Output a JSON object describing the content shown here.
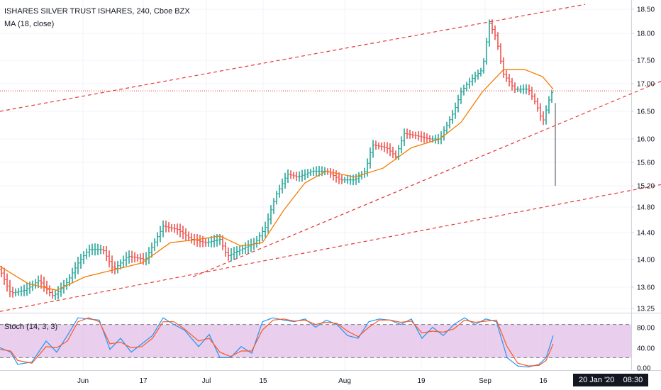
{
  "header": {
    "title": "ISHARES SILVER TRUST ISHARES, 240, Cboe BZX",
    "ma_label": "MA (18, close)",
    "stoch_label": "Stoch (14, 3, 3)"
  },
  "time_axis": {
    "labels": [
      "Jun",
      "17",
      "Jul",
      "15",
      "Aug",
      "19",
      "Sep",
      "16"
    ],
    "crosshair_date": "20 Jan '20",
    "crosshair_time": "08:30"
  },
  "chart_data": [
    {
      "type": "candlestick",
      "title": "ISHARES SILVER TRUST ISHARES, 240, Cboe BZX",
      "yticks": [
        "13.25",
        "13.60",
        "14.00",
        "14.40",
        "14.80",
        "15.20",
        "15.60",
        "16.00",
        "16.50",
        "17.00",
        "17.50",
        "18.00",
        "18.50"
      ],
      "ylim": [
        13.15,
        18.6
      ],
      "xlabels": [
        "Jun",
        "17",
        "Jul",
        "15",
        "Aug",
        "19",
        "Sep",
        "16"
      ],
      "grid": true,
      "current_price_line": 16.87,
      "close_points": [
        {
          "x": 0,
          "y": 13.85
        },
        {
          "x": 15,
          "y": 13.5
        },
        {
          "x": 35,
          "y": 13.55
        },
        {
          "x": 55,
          "y": 13.7
        },
        {
          "x": 75,
          "y": 13.45
        },
        {
          "x": 95,
          "y": 13.68
        },
        {
          "x": 110,
          "y": 13.95
        },
        {
          "x": 125,
          "y": 14.15
        },
        {
          "x": 145,
          "y": 14.15
        },
        {
          "x": 160,
          "y": 13.85
        },
        {
          "x": 180,
          "y": 14.05
        },
        {
          "x": 205,
          "y": 14.0
        },
        {
          "x": 215,
          "y": 14.2
        },
        {
          "x": 230,
          "y": 14.5
        },
        {
          "x": 250,
          "y": 14.45
        },
        {
          "x": 270,
          "y": 14.3
        },
        {
          "x": 290,
          "y": 14.25
        },
        {
          "x": 310,
          "y": 14.3
        },
        {
          "x": 320,
          "y": 14.05
        },
        {
          "x": 340,
          "y": 14.15
        },
        {
          "x": 360,
          "y": 14.25
        },
        {
          "x": 375,
          "y": 14.5
        },
        {
          "x": 390,
          "y": 15.05
        },
        {
          "x": 405,
          "y": 15.4
        },
        {
          "x": 420,
          "y": 15.35
        },
        {
          "x": 440,
          "y": 15.45
        },
        {
          "x": 460,
          "y": 15.45
        },
        {
          "x": 480,
          "y": 15.3
        },
        {
          "x": 500,
          "y": 15.3
        },
        {
          "x": 515,
          "y": 15.45
        },
        {
          "x": 525,
          "y": 15.9
        },
        {
          "x": 545,
          "y": 15.85
        },
        {
          "x": 558,
          "y": 15.7
        },
        {
          "x": 570,
          "y": 16.1
        },
        {
          "x": 590,
          "y": 16.05
        },
        {
          "x": 605,
          "y": 16.0
        },
        {
          "x": 620,
          "y": 16.0
        },
        {
          "x": 640,
          "y": 16.5
        },
        {
          "x": 650,
          "y": 16.85
        },
        {
          "x": 665,
          "y": 17.1
        },
        {
          "x": 680,
          "y": 17.3
        },
        {
          "x": 690,
          "y": 18.2
        },
        {
          "x": 700,
          "y": 17.9
        },
        {
          "x": 710,
          "y": 17.2
        },
        {
          "x": 725,
          "y": 16.9
        },
        {
          "x": 745,
          "y": 16.9
        },
        {
          "x": 757,
          "y": 16.6
        },
        {
          "x": 765,
          "y": 16.3
        },
        {
          "x": 775,
          "y": 16.75
        },
        {
          "x": 780,
          "y": 16.9
        }
      ],
      "ma_points": [
        {
          "x": 0,
          "y": 13.9
        },
        {
          "x": 40,
          "y": 13.65
        },
        {
          "x": 80,
          "y": 13.55
        },
        {
          "x": 120,
          "y": 13.75
        },
        {
          "x": 160,
          "y": 13.85
        },
        {
          "x": 200,
          "y": 13.95
        },
        {
          "x": 240,
          "y": 14.25
        },
        {
          "x": 280,
          "y": 14.3
        },
        {
          "x": 310,
          "y": 14.35
        },
        {
          "x": 340,
          "y": 14.2
        },
        {
          "x": 370,
          "y": 14.25
        },
        {
          "x": 400,
          "y": 14.75
        },
        {
          "x": 430,
          "y": 15.25
        },
        {
          "x": 460,
          "y": 15.45
        },
        {
          "x": 500,
          "y": 15.35
        },
        {
          "x": 540,
          "y": 15.5
        },
        {
          "x": 580,
          "y": 15.85
        },
        {
          "x": 620,
          "y": 16.0
        },
        {
          "x": 650,
          "y": 16.3
        },
        {
          "x": 680,
          "y": 16.85
        },
        {
          "x": 710,
          "y": 17.3
        },
        {
          "x": 740,
          "y": 17.3
        },
        {
          "x": 765,
          "y": 17.15
        },
        {
          "x": 780,
          "y": 16.9
        }
      ],
      "last_bar": {
        "x": 783,
        "high": 16.65,
        "low": 15.2
      },
      "trendlines": [
        {
          "x1": 0,
          "y1": 16.5,
          "x2": 825,
          "y2": 18.6
        },
        {
          "x1": 272,
          "y1": 13.75,
          "x2": 932,
          "y2": 17.05
        },
        {
          "x1": 0,
          "y1": 13.2,
          "x2": 932,
          "y2": 15.22
        }
      ]
    },
    {
      "type": "line",
      "title": "Stoch (14, 3, 3)",
      "yticks": [
        "0.00",
        "40.00",
        "80.00"
      ],
      "ylim": [
        0,
        100
      ],
      "bands": [
        20,
        80
      ],
      "series": [
        {
          "color": "#2196f3",
          "points": [
            {
              "x": 0,
              "y": 38
            },
            {
              "x": 15,
              "y": 30
            },
            {
              "x": 25,
              "y": 8
            },
            {
              "x": 45,
              "y": 12
            },
            {
              "x": 65,
              "y": 50
            },
            {
              "x": 80,
              "y": 30
            },
            {
              "x": 95,
              "y": 60
            },
            {
              "x": 110,
              "y": 92
            },
            {
              "x": 125,
              "y": 90
            },
            {
              "x": 140,
              "y": 88
            },
            {
              "x": 155,
              "y": 35
            },
            {
              "x": 170,
              "y": 55
            },
            {
              "x": 185,
              "y": 30
            },
            {
              "x": 200,
              "y": 45
            },
            {
              "x": 215,
              "y": 60
            },
            {
              "x": 230,
              "y": 92
            },
            {
              "x": 245,
              "y": 80
            },
            {
              "x": 260,
              "y": 70
            },
            {
              "x": 280,
              "y": 40
            },
            {
              "x": 295,
              "y": 62
            },
            {
              "x": 310,
              "y": 20
            },
            {
              "x": 325,
              "y": 20
            },
            {
              "x": 340,
              "y": 40
            },
            {
              "x": 355,
              "y": 28
            },
            {
              "x": 370,
              "y": 85
            },
            {
              "x": 385,
              "y": 92
            },
            {
              "x": 400,
              "y": 88
            },
            {
              "x": 415,
              "y": 85
            },
            {
              "x": 430,
              "y": 90
            },
            {
              "x": 445,
              "y": 75
            },
            {
              "x": 460,
              "y": 88
            },
            {
              "x": 475,
              "y": 80
            },
            {
              "x": 490,
              "y": 60
            },
            {
              "x": 505,
              "y": 55
            },
            {
              "x": 520,
              "y": 85
            },
            {
              "x": 535,
              "y": 90
            },
            {
              "x": 550,
              "y": 88
            },
            {
              "x": 565,
              "y": 80
            },
            {
              "x": 580,
              "y": 90
            },
            {
              "x": 595,
              "y": 55
            },
            {
              "x": 610,
              "y": 75
            },
            {
              "x": 625,
              "y": 60
            },
            {
              "x": 640,
              "y": 80
            },
            {
              "x": 655,
              "y": 92
            },
            {
              "x": 670,
              "y": 80
            },
            {
              "x": 685,
              "y": 90
            },
            {
              "x": 700,
              "y": 85
            },
            {
              "x": 715,
              "y": 20
            },
            {
              "x": 730,
              "y": 5
            },
            {
              "x": 745,
              "y": 3
            },
            {
              "x": 760,
              "y": 8
            },
            {
              "x": 770,
              "y": 20
            },
            {
              "x": 780,
              "y": 60
            }
          ]
        },
        {
          "color": "#ff5722",
          "points": [
            {
              "x": 0,
              "y": 35
            },
            {
              "x": 15,
              "y": 32
            },
            {
              "x": 25,
              "y": 15
            },
            {
              "x": 45,
              "y": 10
            },
            {
              "x": 65,
              "y": 40
            },
            {
              "x": 80,
              "y": 38
            },
            {
              "x": 95,
              "y": 50
            },
            {
              "x": 110,
              "y": 85
            },
            {
              "x": 125,
              "y": 92
            },
            {
              "x": 140,
              "y": 85
            },
            {
              "x": 155,
              "y": 45
            },
            {
              "x": 170,
              "y": 48
            },
            {
              "x": 185,
              "y": 38
            },
            {
              "x": 200,
              "y": 40
            },
            {
              "x": 215,
              "y": 55
            },
            {
              "x": 230,
              "y": 85
            },
            {
              "x": 245,
              "y": 85
            },
            {
              "x": 260,
              "y": 72
            },
            {
              "x": 280,
              "y": 50
            },
            {
              "x": 295,
              "y": 55
            },
            {
              "x": 310,
              "y": 30
            },
            {
              "x": 325,
              "y": 22
            },
            {
              "x": 340,
              "y": 32
            },
            {
              "x": 355,
              "y": 32
            },
            {
              "x": 370,
              "y": 70
            },
            {
              "x": 385,
              "y": 88
            },
            {
              "x": 400,
              "y": 90
            },
            {
              "x": 415,
              "y": 86
            },
            {
              "x": 430,
              "y": 88
            },
            {
              "x": 445,
              "y": 80
            },
            {
              "x": 460,
              "y": 84
            },
            {
              "x": 475,
              "y": 82
            },
            {
              "x": 490,
              "y": 68
            },
            {
              "x": 505,
              "y": 58
            },
            {
              "x": 520,
              "y": 75
            },
            {
              "x": 535,
              "y": 88
            },
            {
              "x": 550,
              "y": 88
            },
            {
              "x": 565,
              "y": 84
            },
            {
              "x": 580,
              "y": 86
            },
            {
              "x": 595,
              "y": 65
            },
            {
              "x": 610,
              "y": 68
            },
            {
              "x": 625,
              "y": 66
            },
            {
              "x": 640,
              "y": 72
            },
            {
              "x": 655,
              "y": 88
            },
            {
              "x": 670,
              "y": 84
            },
            {
              "x": 685,
              "y": 86
            },
            {
              "x": 700,
              "y": 88
            },
            {
              "x": 715,
              "y": 40
            },
            {
              "x": 730,
              "y": 10
            },
            {
              "x": 745,
              "y": 5
            },
            {
              "x": 760,
              "y": 6
            },
            {
              "x": 770,
              "y": 15
            },
            {
              "x": 780,
              "y": 45
            }
          ]
        }
      ]
    }
  ]
}
